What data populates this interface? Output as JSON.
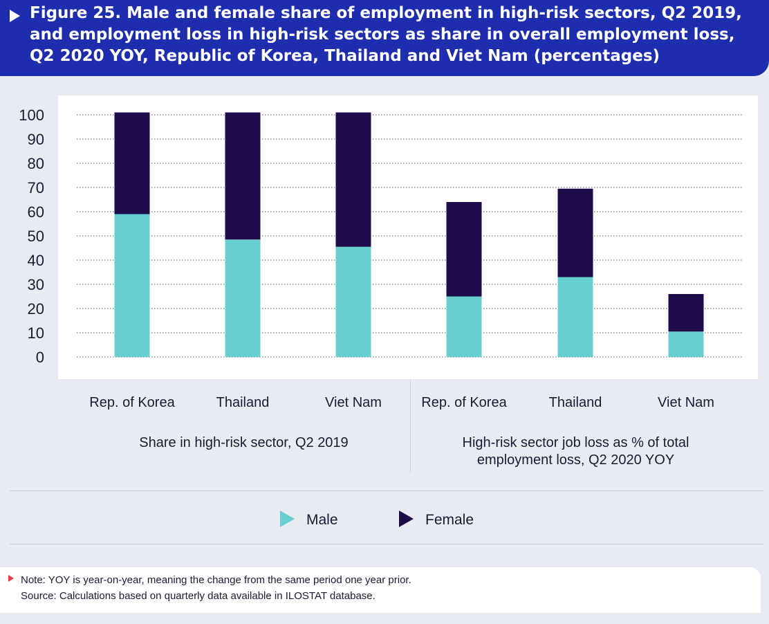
{
  "header": {
    "title": "Figure 25. Male and female share of employment in high-risk sectors, Q2 2019, and employment loss in high-risk sectors as share in overall employment loss, Q2 2020 YOY, Republic of Korea, Thailand and Viet Nam (percentages)"
  },
  "chart_data": {
    "type": "bar",
    "stacked": true,
    "title": "Figure 25. Male and female share of employment in high-risk sectors, Q2 2019, and employment loss in high-risk sectors as share in overall employment loss, Q2 2020 YOY, Republic of Korea, Thailand and Viet Nam (percentages)",
    "categories": [
      "Rep. of Korea",
      "Thailand",
      "Viet Nam",
      "Rep. of Korea",
      "Thailand",
      "Viet Nam"
    ],
    "groups": [
      {
        "label": "Share in high-risk sector, Q2 2019",
        "categories": [
          "Rep. of Korea",
          "Thailand",
          "Viet Nam"
        ]
      },
      {
        "label": "High-risk sector job loss as % of total employment loss, Q2 2020 YOY",
        "categories": [
          "Rep. of Korea",
          "Thailand",
          "Viet Nam"
        ]
      }
    ],
    "series": [
      {
        "name": "Male",
        "color": "#66cfd0",
        "values": [
          59,
          48.5,
          45.5,
          25,
          33,
          10.5
        ]
      },
      {
        "name": "Female",
        "color": "#1e0b4a",
        "values": [
          42,
          52.5,
          55.5,
          39,
          36.5,
          15.5
        ]
      }
    ],
    "yticks": [
      0,
      10,
      20,
      30,
      40,
      50,
      60,
      70,
      80,
      90,
      100
    ],
    "ylim": [
      0,
      100
    ],
    "grid": "dotted horizontal",
    "legend": "bottom"
  },
  "group_labels": {
    "left": "Share in high-risk sector, Q2 2019",
    "right": "High-risk sector job loss as % of total employment loss, Q2 2020 YOY"
  },
  "legend": {
    "male": "Male",
    "female": "Female"
  },
  "notes": {
    "note": "Note: YOY is year-on-year, meaning the change from the same period one year prior.",
    "source": "Source: Calculations based on quarterly data available in ILOSTAT database."
  }
}
